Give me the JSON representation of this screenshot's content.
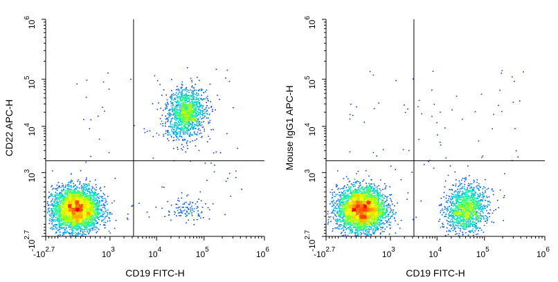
{
  "chart_data": [
    {
      "type": "scatter",
      "subtype": "flow-cytometry-density-dot-plot",
      "xlabel": "CD19 FITC-H",
      "ylabel": "CD22 APC-H",
      "x_scale": "biexponential (log from 10^3)",
      "y_scale": "biexponential (log from 10^3)",
      "xlim": [
        -500,
        1000000
      ],
      "ylim": [
        -500,
        1000000
      ],
      "x_ticks": [
        {
          "base": "-10",
          "exp": "2.7",
          "value": -500
        },
        {
          "base": "10",
          "exp": "3",
          "value": 1000
        },
        {
          "base": "10",
          "exp": "4",
          "value": 10000
        },
        {
          "base": "10",
          "exp": "5",
          "value": 100000
        },
        {
          "base": "10",
          "exp": "6",
          "value": 1000000
        }
      ],
      "y_ticks": [
        {
          "base": "-10",
          "exp": "2.7",
          "value": -500
        },
        {
          "base": "10",
          "exp": "3",
          "value": 1000
        },
        {
          "base": "10",
          "exp": "4",
          "value": 10000
        },
        {
          "base": "10",
          "exp": "5",
          "value": 100000
        },
        {
          "base": "10",
          "exp": "6",
          "value": 1000000
        }
      ],
      "quadrant_gate": {
        "x": 3200,
        "y": 1800
      },
      "populations": [
        {
          "x_center": 300,
          "y_center": 250,
          "weight": 0.72
        },
        {
          "x_center": 40000,
          "y_center": 20000,
          "weight": 0.26
        },
        {
          "x_center": 40000,
          "y_center": 250,
          "weight": 0.02
        }
      ],
      "grid": false,
      "legend": "none"
    },
    {
      "type": "scatter",
      "subtype": "flow-cytometry-density-dot-plot",
      "xlabel": "CD19 FITC-H",
      "ylabel": "Mouse IgG1 APC-H",
      "x_scale": "biexponential (log from 10^3)",
      "y_scale": "biexponential (log from 10^3)",
      "xlim": [
        -500,
        1000000
      ],
      "ylim": [
        -500,
        1000000
      ],
      "x_ticks": [
        {
          "base": "-10",
          "exp": "2.7",
          "value": -500
        },
        {
          "base": "10",
          "exp": "3",
          "value": 1000
        },
        {
          "base": "10",
          "exp": "4",
          "value": 10000
        },
        {
          "base": "10",
          "exp": "5",
          "value": 100000
        },
        {
          "base": "10",
          "exp": "6",
          "value": 1000000
        }
      ],
      "y_ticks": [
        {
          "base": "-10",
          "exp": "2.7",
          "value": -500
        },
        {
          "base": "10",
          "exp": "3",
          "value": 1000
        },
        {
          "base": "10",
          "exp": "4",
          "value": 10000
        },
        {
          "base": "10",
          "exp": "5",
          "value": 100000
        },
        {
          "base": "10",
          "exp": "6",
          "value": 1000000
        }
      ],
      "quadrant_gate": {
        "x": 3200,
        "y": 1800
      },
      "populations": [
        {
          "x_center": 400,
          "y_center": 250,
          "weight": 0.72
        },
        {
          "x_center": 40000,
          "y_center": 250,
          "weight": 0.26
        }
      ],
      "grid": false,
      "legend": "none"
    }
  ],
  "colors": {
    "density_scale": [
      "#0000ff",
      "#00a0ff",
      "#00ffa0",
      "#a0ff00",
      "#ffff00",
      "#ff8000",
      "#ff0000"
    ],
    "axis": "#000000",
    "gate_line": "#000000"
  }
}
